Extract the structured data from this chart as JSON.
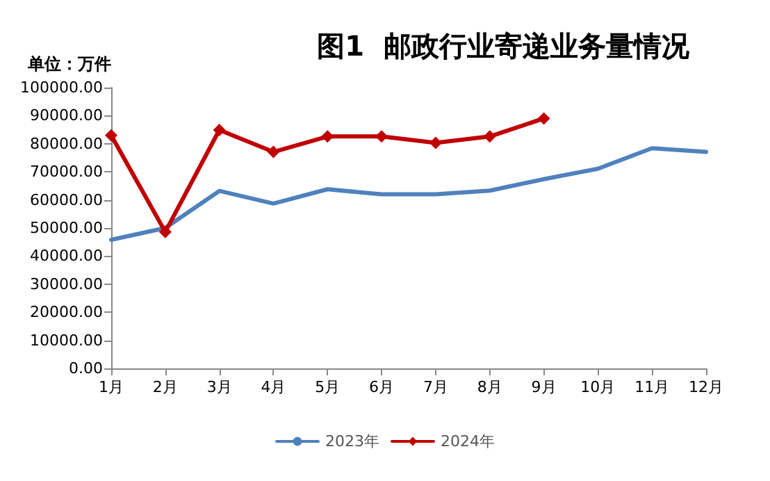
{
  "chart_data": {
    "type": "line",
    "title": "图1  邮政行业寄递业务量情况",
    "ylabel": "单位：万件",
    "categories": [
      "1月",
      "2月",
      "3月",
      "4月",
      "5月",
      "6月",
      "7月",
      "8月",
      "9月",
      "10月",
      "11月",
      "12月"
    ],
    "series": [
      {
        "name": "2023年",
        "color": "#4f81bd",
        "marker": "none",
        "values": [
          45800,
          50000,
          63200,
          58700,
          63800,
          62000,
          62000,
          63300,
          67400,
          71100,
          78400,
          77100
        ]
      },
      {
        "name": "2024年",
        "color": "#c00000",
        "marker": "diamond",
        "values": [
          83000,
          48600,
          84900,
          77100,
          82600,
          82600,
          80300,
          82600,
          89000,
          null,
          null,
          null
        ]
      }
    ],
    "ylim": [
      0,
      100000
    ],
    "yticks": [
      {
        "value": 0,
        "label": "0.00"
      },
      {
        "value": 10000,
        "label": "10000.00"
      },
      {
        "value": 20000,
        "label": "20000.00"
      },
      {
        "value": 30000,
        "label": "30000.00"
      },
      {
        "value": 40000,
        "label": "40000.00"
      },
      {
        "value": 50000,
        "label": "50000.00"
      },
      {
        "value": 60000,
        "label": "60000.00"
      },
      {
        "value": 70000,
        "label": "70000.00"
      },
      {
        "value": 80000,
        "label": "80000.00"
      },
      {
        "value": 90000,
        "label": "90000.00"
      },
      {
        "value": 100000,
        "label": "100000.00"
      }
    ],
    "grid": false,
    "legend": "bottom"
  }
}
